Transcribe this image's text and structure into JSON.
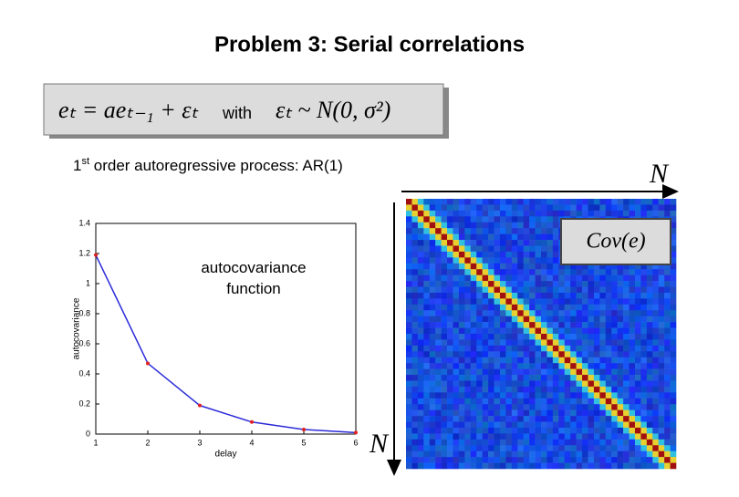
{
  "header": {
    "title": "Problem 3: Serial correlations"
  },
  "equation": {
    "left": "eₜ = aeₜ₋₁ + εₜ",
    "with": "with",
    "right": "εₜ ~ N(0, σ²)"
  },
  "description": {
    "ordinal": "1",
    "ordinal_suffix": "st",
    "rest": " order autoregressive process: AR(1)"
  },
  "matrix": {
    "top_label": "N",
    "side_label": "N",
    "caption": "Cov(e)"
  },
  "chart_data": {
    "type": "line",
    "annotation": "autocovariance function",
    "x_label": "delay",
    "y_label": "autocovariance",
    "x": [
      1,
      2,
      3,
      4,
      5,
      6
    ],
    "series": [
      {
        "name": "autocovariance",
        "color": "#2b2bd9",
        "marker_color": "#e02020",
        "values": [
          1.19,
          0.47,
          0.19,
          0.08,
          0.03,
          0.01
        ]
      }
    ],
    "xlim": [
      1,
      6
    ],
    "xticks": [
      1,
      2,
      3,
      4,
      5,
      6
    ],
    "ylim": [
      0,
      1.4
    ],
    "yticks": [
      0,
      0.2,
      0.4,
      0.6,
      0.8,
      1,
      1.2,
      1.4
    ]
  }
}
